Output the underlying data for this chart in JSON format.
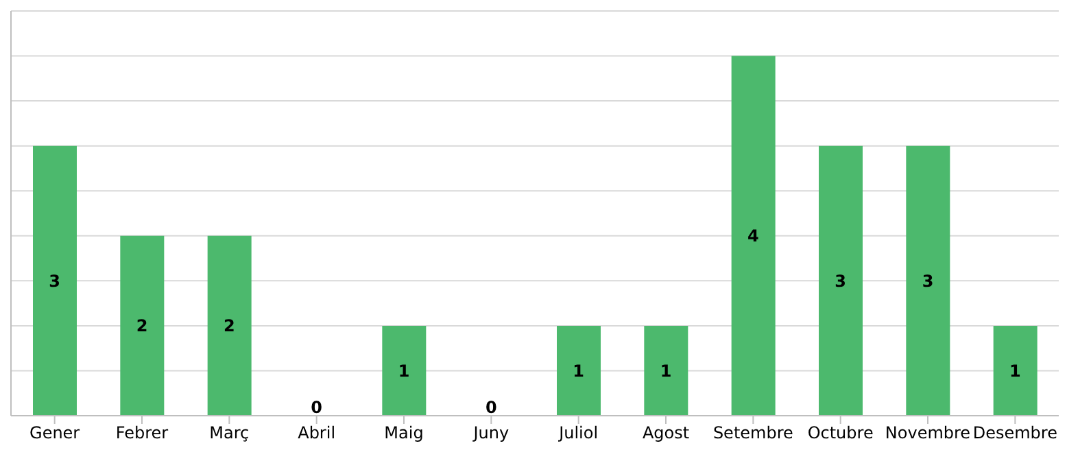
{
  "chart_data": {
    "type": "bar",
    "categories": [
      "Gener",
      "Febrer",
      "Març",
      "Abril",
      "Maig",
      "Juny",
      "Juliol",
      "Agost",
      "Setembre",
      "Octubre",
      "Novembre",
      "Desembre"
    ],
    "values": [
      3,
      2,
      2,
      0,
      1,
      0,
      1,
      1,
      4,
      3,
      3,
      1
    ],
    "color": "#4cb96d",
    "ylim": [
      0,
      4.5
    ],
    "yticks": [
      {
        "value": 0,
        "label": null
      },
      {
        "value": 0.5,
        "label": null
      },
      {
        "value": 1,
        "label": null
      },
      {
        "value": 1.5,
        "label": null
      },
      {
        "value": 2,
        "label": null
      },
      {
        "value": 2.5,
        "label": null
      },
      {
        "value": 3,
        "label": null
      },
      {
        "value": 3.5,
        "label": null
      },
      {
        "value": 4,
        "label": null
      },
      {
        "value": 4.5,
        "label": null
      }
    ],
    "grid": "y",
    "tick_labels": "x",
    "data_labels": true
  }
}
